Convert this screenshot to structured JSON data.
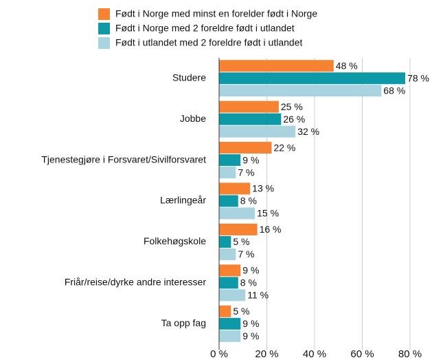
{
  "chart_data": {
    "type": "barh",
    "categories": [
      "Studere",
      "Jobbe",
      "Tjenestegjøre i Forsvaret/Sivilforsvaret",
      "Lærlingeår",
      "Folkehøgskole",
      "Friår/reise/dyrke andre interesser",
      "Ta opp fag"
    ],
    "series": [
      {
        "name": "Født i Norge med minst en forelder født i Norge",
        "color": "#f78231",
        "values": [
          48,
          25,
          22,
          13,
          16,
          9,
          5
        ],
        "value_labels": [
          "48 %",
          "25 %",
          "22 %",
          "13 %",
          "16 %",
          "9 %",
          "5 %"
        ]
      },
      {
        "name": "Født i Norge med 2 foreldre født i utlandet",
        "color": "#0e99a8",
        "values": [
          78,
          26,
          9,
          8,
          5,
          8,
          9
        ],
        "value_labels": [
          "78 %",
          "26 %",
          "9 %",
          "8 %",
          "5 %",
          "8 %",
          "9 %"
        ]
      },
      {
        "name": "Født i utlandet med 2 foreldre født i utlandet",
        "color": "#a9d3de",
        "values": [
          68,
          32,
          7,
          15,
          7,
          11,
          9
        ],
        "value_labels": [
          "68 %",
          "32 %",
          "7 %",
          "15 %",
          "7 %",
          "11 %",
          "9 %"
        ]
      }
    ],
    "xlim": [
      0,
      80
    ],
    "xticks": [
      {
        "value": 0,
        "label": "0 %"
      },
      {
        "value": 20,
        "label": "20 %"
      },
      {
        "value": 40,
        "label": "40 %"
      },
      {
        "value": 60,
        "label": "60 %"
      },
      {
        "value": 80,
        "label": "80 %"
      }
    ],
    "grid": true,
    "legend": "top"
  }
}
